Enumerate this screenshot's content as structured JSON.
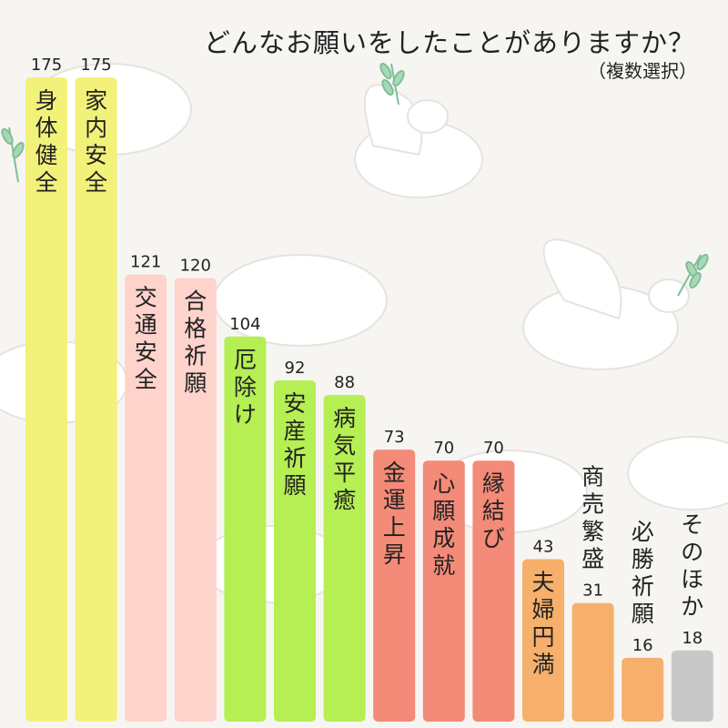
{
  "chart_data": {
    "type": "bar",
    "title": "どんなお願いをしたことがありますか？",
    "subtitle": "（複数選択）",
    "xlabel": "",
    "ylabel": "",
    "ylim": [
      0,
      175
    ],
    "grid": false,
    "legend": "none",
    "categories": [
      "身体健全",
      "家内安全",
      "交通安全",
      "合格祈願",
      "厄除け",
      "安産祈願",
      "病気平癒",
      "金運上昇",
      "心願成就",
      "縁結び",
      "夫婦円満",
      "商売繁盛",
      "必勝祈願",
      "そのほか"
    ],
    "values": [
      175,
      175,
      121,
      120,
      104,
      92,
      88,
      73,
      70,
      70,
      43,
      31,
      16,
      18
    ],
    "colors": [
      "#f2f17a",
      "#f2f17a",
      "#fdd3cb",
      "#fdd3cb",
      "#b5ef53",
      "#b5ef53",
      "#b5ef53",
      "#f48a78",
      "#f48a78",
      "#f48a78",
      "#f6b06b",
      "#f6b06b",
      "#f6b06b",
      "#c8c8c8"
    ]
  }
}
